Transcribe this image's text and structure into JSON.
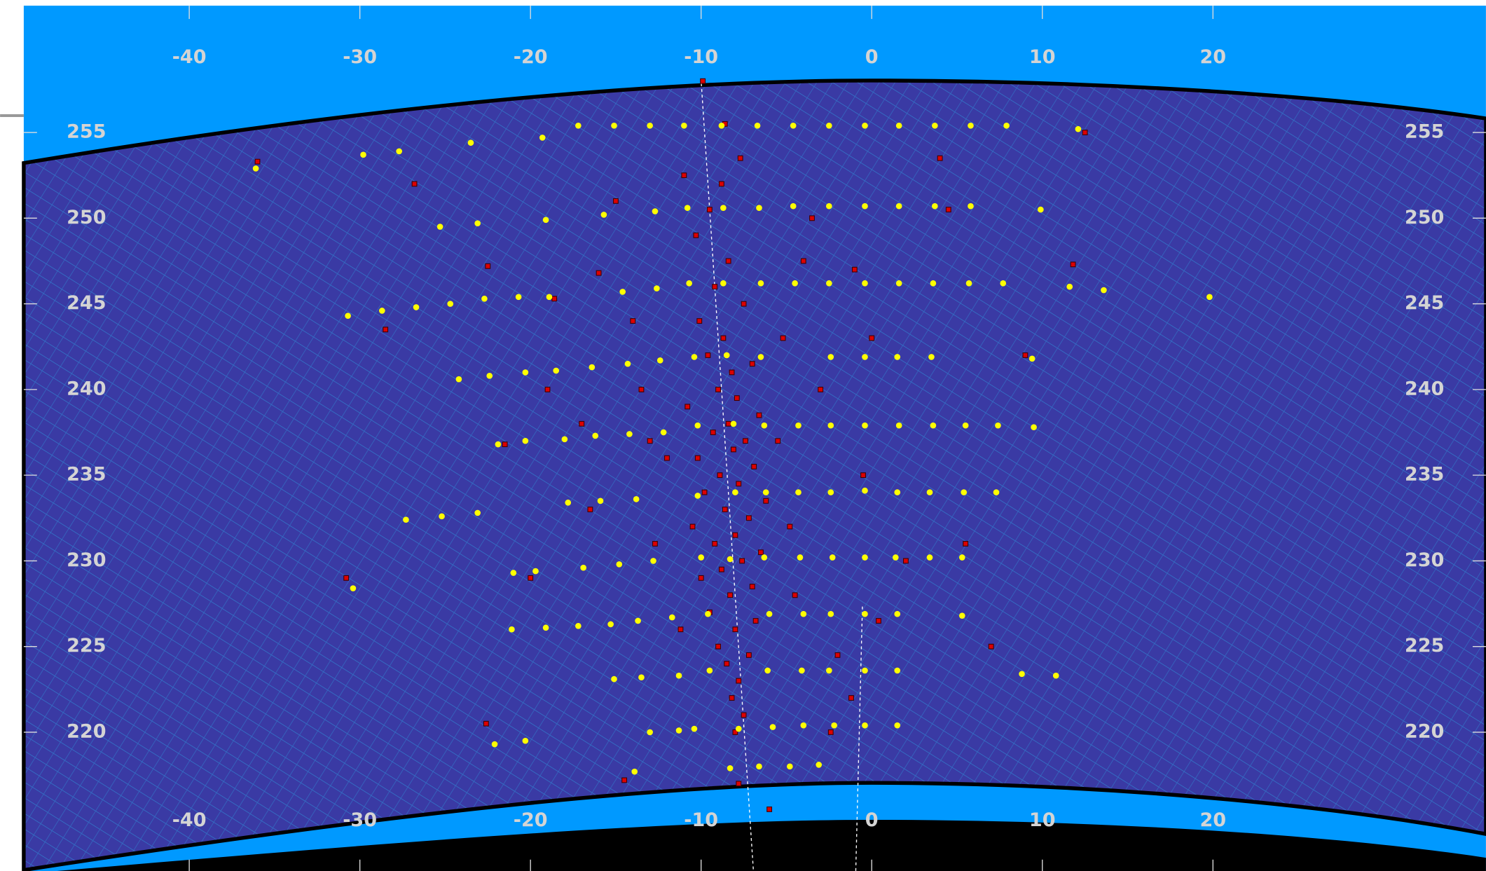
{
  "chart_data": {
    "type": "scatter",
    "xlim": [
      -49.7,
      36
    ],
    "ylim": [
      211.9,
      262.4
    ],
    "xticks": [
      -40,
      -30,
      -20,
      -10,
      0,
      10,
      20
    ],
    "yticks": [
      220,
      225,
      230,
      235,
      240,
      245,
      250,
      255
    ],
    "series": [
      {
        "color": "#ffff00",
        "x": [
          -17.2,
          -15.1,
          -13,
          -11,
          -8.8,
          -6.7,
          -4.6,
          -2.5,
          -0.4,
          1.6,
          3.7,
          5.8,
          7.9,
          12.1,
          -10.8,
          -8.7,
          -6.6,
          -4.6,
          -2.5,
          -0.4,
          1.6,
          3.7,
          5.8,
          9.9,
          -12.7,
          -15.7,
          -19.1,
          -23.1,
          -25.3,
          -10.7,
          -8.7,
          -6.5,
          -4.5,
          -2.5,
          -0.4,
          1.6,
          3.6,
          5.7,
          7.7,
          11.6,
          13.6,
          19.8,
          -12.6,
          -14.6,
          -18.9,
          -10.4,
          -8.5,
          -6.5,
          -2.4,
          -0.4,
          1.5,
          3.5,
          9.4,
          -12.4,
          -14.3,
          -16.4,
          -18.5,
          -20.3,
          -22.4,
          -24.2,
          -10.2,
          -8.1,
          -6.3,
          -4.3,
          -2.4,
          -0.4,
          1.6,
          3.6,
          5.5,
          7.4,
          9.5,
          -12.2,
          -14.2,
          -16.2,
          -18,
          -20.3,
          -21.9,
          -8,
          -6.2,
          -4.3,
          -2.4,
          -0.4,
          1.5,
          3.4,
          5.4,
          7.3,
          -10.2,
          -13.8,
          -15.9,
          -17.8,
          -23.1,
          -25.2,
          -27.3,
          -10,
          -8.3,
          -6.3,
          -4.2,
          -2.3,
          -0.4,
          1.4,
          3.4,
          5.3,
          -12.8,
          -14.8,
          -16.9,
          -19.7,
          -21,
          -30.4,
          -9.6,
          -6,
          -4,
          -2.4,
          -0.4,
          1.5,
          5.3,
          -11.7,
          -13.7,
          -15.3,
          -17.2,
          -19.1,
          -21.1,
          -9.5,
          -6.1,
          -4.1,
          -2.5,
          -0.4,
          1.5,
          8.8,
          10.8,
          -11.3,
          -13.5,
          -15.1,
          -10.4,
          -7.8,
          -5.8,
          -4,
          -2.2,
          -0.4,
          1.5,
          -11.3,
          -13,
          -20.3,
          -22.1,
          -8.3,
          -6.6,
          -4.8,
          -3.1,
          -13.9,
          -36.1,
          -29.8,
          -27.7,
          -23.5,
          -19.3,
          -30.7,
          -28.7,
          -26.7,
          -24.7,
          -22.7,
          -20.7
        ],
        "y": [
          255.4,
          255.4,
          255.4,
          255.4,
          255.4,
          255.4,
          255.4,
          255.4,
          255.4,
          255.4,
          255.4,
          255.4,
          255.4,
          255.2,
          250.6,
          250.6,
          250.6,
          250.7,
          250.7,
          250.7,
          250.7,
          250.7,
          250.7,
          250.5,
          250.4,
          250.2,
          249.9,
          249.7,
          249.5,
          246.2,
          246.2,
          246.2,
          246.2,
          246.2,
          246.2,
          246.2,
          246.2,
          246.2,
          246.2,
          246,
          245.8,
          245.4,
          245.9,
          245.7,
          245.4,
          241.9,
          242,
          241.9,
          241.9,
          241.9,
          241.9,
          241.9,
          241.8,
          241.7,
          241.5,
          241.3,
          241.1,
          241,
          240.8,
          240.6,
          237.9,
          238,
          237.9,
          237.9,
          237.9,
          237.9,
          237.9,
          237.9,
          237.9,
          237.9,
          237.8,
          237.5,
          237.4,
          237.3,
          237.1,
          237,
          236.8,
          234,
          234,
          234,
          234,
          234.1,
          234,
          234,
          234,
          234,
          233.8,
          233.6,
          233.5,
          233.4,
          232.8,
          232.6,
          232.4,
          230.2,
          230.1,
          230.2,
          230.2,
          230.2,
          230.2,
          230.2,
          230.2,
          230.2,
          230,
          229.8,
          229.6,
          229.4,
          229.3,
          228.4,
          226.9,
          226.9,
          226.9,
          226.9,
          226.9,
          226.9,
          226.8,
          226.7,
          226.5,
          226.3,
          226.2,
          226.1,
          226,
          223.6,
          223.6,
          223.6,
          223.6,
          223.6,
          223.6,
          223.4,
          223.3,
          223.3,
          223.2,
          223.1,
          220.2,
          220.2,
          220.3,
          220.4,
          220.4,
          220.4,
          220.4,
          220.1,
          220,
          219.5,
          219.3,
          217.9,
          218,
          218,
          218.1,
          217.7,
          252.9,
          253.7,
          253.9,
          254.4,
          254.7,
          244.3,
          244.6,
          244.8,
          245,
          245.3,
          245.4
        ]
      },
      {
        "color": "#dd0000",
        "x": [
          -8,
          -7.5,
          -8.2,
          -7.8,
          -8.5,
          -7.2,
          -9,
          -8,
          -6.8,
          -9.5,
          -8.3,
          -7,
          -10,
          -8.8,
          -7.6,
          -6.5,
          -9.2,
          -8,
          -10.5,
          -7.2,
          -8.6,
          -6.2,
          -9.8,
          -7.8,
          -8.9,
          -6.9,
          -10.2,
          -8.1,
          -7.4,
          -9.3,
          -8.4,
          -6.6,
          -10.8,
          -7.9,
          -9,
          -8.2,
          -7,
          -9.6,
          -8.7,
          -10.1,
          -7.5,
          -9.2,
          -8.4,
          -10.3,
          -9.5,
          -8.8,
          -7.7,
          -8.6,
          -9.9,
          -12,
          -13.5,
          -12.7,
          -11.2,
          -14,
          -15,
          -5.5,
          -4.8,
          -5.2,
          -4,
          -3.5,
          -4.5,
          -2,
          -2.4,
          -1.2,
          -3,
          -1,
          0,
          -17,
          -18.6,
          -21.5,
          -20,
          -16.5,
          -22.5,
          -28.5,
          -26.8,
          -30.8,
          -36,
          -19,
          -22.6,
          4.5,
          4,
          9,
          7,
          11.8,
          12.5,
          -0.5,
          0.4,
          -11,
          -13,
          -6,
          -14.5,
          -7.8,
          2,
          5.5,
          -16
        ],
        "y": [
          220,
          221,
          222,
          223,
          224,
          224.5,
          225,
          226,
          226.5,
          227,
          228,
          228.5,
          229,
          229.5,
          230,
          230.5,
          231,
          231.5,
          232,
          232.5,
          233,
          233.5,
          234,
          234.5,
          235,
          235.5,
          236,
          236.5,
          237,
          237.5,
          238,
          238.5,
          239,
          239.5,
          240,
          241,
          241.5,
          242,
          243,
          244,
          245,
          246,
          247.5,
          249,
          250.5,
          252,
          253.5,
          255.5,
          258,
          236,
          240,
          231,
          226,
          244,
          251,
          237,
          232,
          243,
          247.5,
          250,
          228,
          224.5,
          220,
          222,
          240,
          247,
          243,
          238,
          245.3,
          236.8,
          229,
          233,
          247.2,
          243.5,
          252,
          229,
          253.3,
          240,
          220.5,
          250.5,
          253.5,
          242,
          225,
          247.3,
          255,
          235,
          226.5,
          252.5,
          237,
          215.5,
          217.2,
          217,
          230,
          231,
          246.8
        ]
      }
    ]
  }
}
